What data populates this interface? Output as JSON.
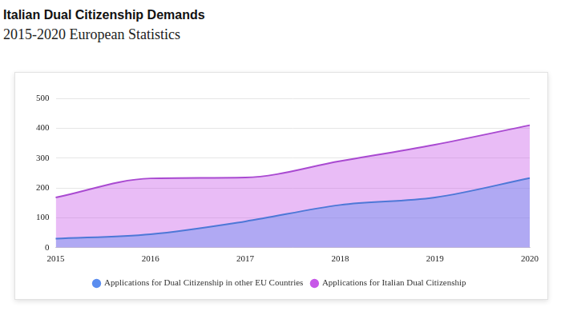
{
  "chart_data": {
    "type": "area",
    "title": "Italian Dual Citizenship Demands",
    "subtitle": "2015-2020 European Statistics",
    "categories": [
      "2015",
      "2016",
      "2017",
      "2018",
      "2019",
      "2020"
    ],
    "series": [
      {
        "name": "Applications for Dual Citizenship in other EU Countries",
        "color": "#5b8def",
        "values": [
          30,
          45,
          88,
          143,
          168,
          233
        ]
      },
      {
        "name": "Applications for Italian Dual Citizenship",
        "color": "#c757e8",
        "values": [
          168,
          232,
          235,
          290,
          345,
          410
        ]
      }
    ],
    "ylim": [
      0,
      500
    ],
    "yticks": [
      0,
      100,
      200,
      300,
      400,
      500
    ],
    "grid": true,
    "legend": "bottom"
  }
}
